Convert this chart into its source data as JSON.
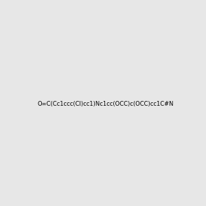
{
  "smiles": "O=C(Cc1ccc(Cl)cc1)Nc1cc(OCC)c(OCC)cc1C#N",
  "background_color_rgb": [
    0.906,
    0.906,
    0.906
  ],
  "background_color_hex": "#e7e7e7",
  "figure_size": [
    3.0,
    3.0
  ],
  "dpi": 100,
  "atom_colors": {
    "N": [
      0.0,
      0.0,
      1.0
    ],
    "O": [
      1.0,
      0.0,
      0.0
    ],
    "Cl": [
      0.0,
      0.502,
      0.0
    ],
    "C": [
      0.0,
      0.0,
      0.0
    ]
  }
}
